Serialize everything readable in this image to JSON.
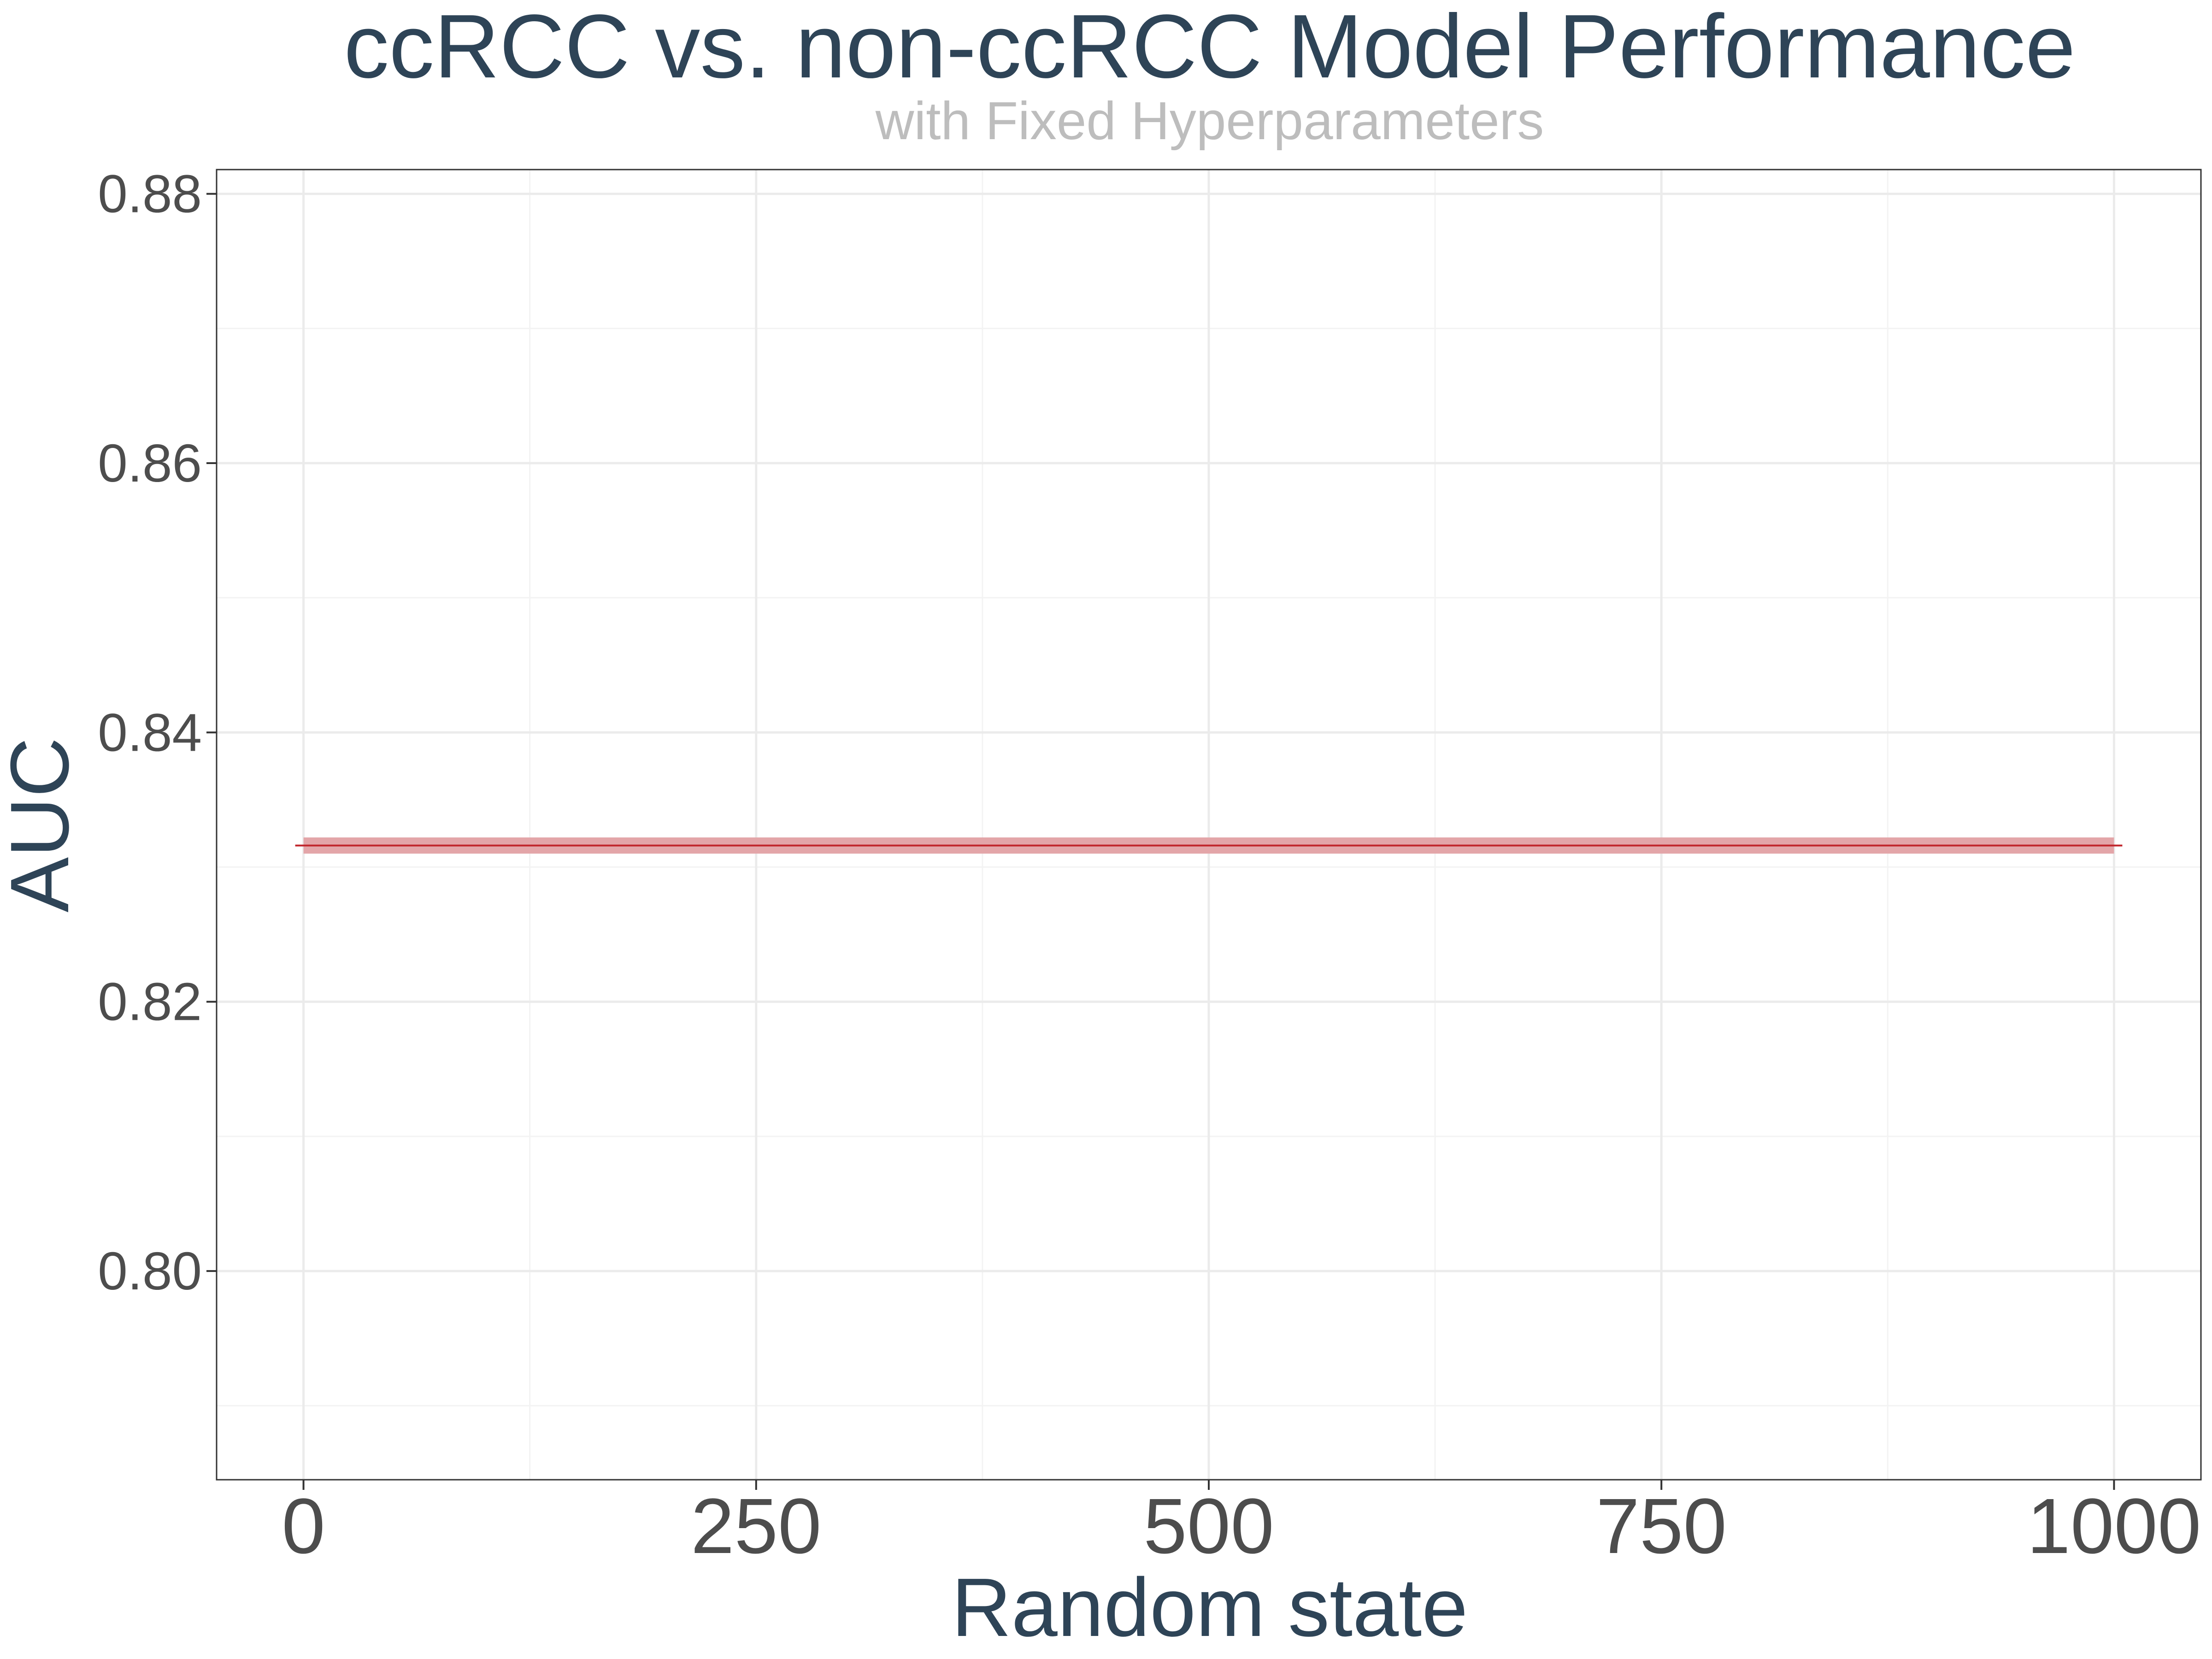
{
  "colors": {
    "title": "#2e4457",
    "subtitle": "#bdbdbd",
    "tick_label": "#4d4d4d",
    "band_fill": "#e3a5a8",
    "line": "#c1272d",
    "grid": "#ebebeb"
  },
  "chart_data": {
    "type": "line",
    "title": "ccRCC vs. non-ccRCC Model Performance",
    "subtitle": "with Fixed Hyperparameters",
    "xlabel": "Random state",
    "ylabel": "AUC",
    "xlim": [
      -48,
      1048
    ],
    "ylim": [
      0.7845,
      0.8818
    ],
    "x_ticks": [
      0,
      250,
      500,
      750,
      1000
    ],
    "x_tick_labels": [
      "0",
      "250",
      "500",
      "750",
      "1000"
    ],
    "y_ticks": [
      0.8,
      0.82,
      0.84,
      0.86,
      0.88
    ],
    "y_tick_labels": [
      "0.80",
      "0.82",
      "0.84",
      "0.86",
      "0.88"
    ],
    "grid": true,
    "series": [
      {
        "x": [
          0,
          1000
        ],
        "values": [
          0.8316,
          0.8316
        ],
        "band_lower": [
          0.831,
          0.831
        ],
        "band_upper": [
          0.8322,
          0.8322
        ]
      }
    ]
  }
}
